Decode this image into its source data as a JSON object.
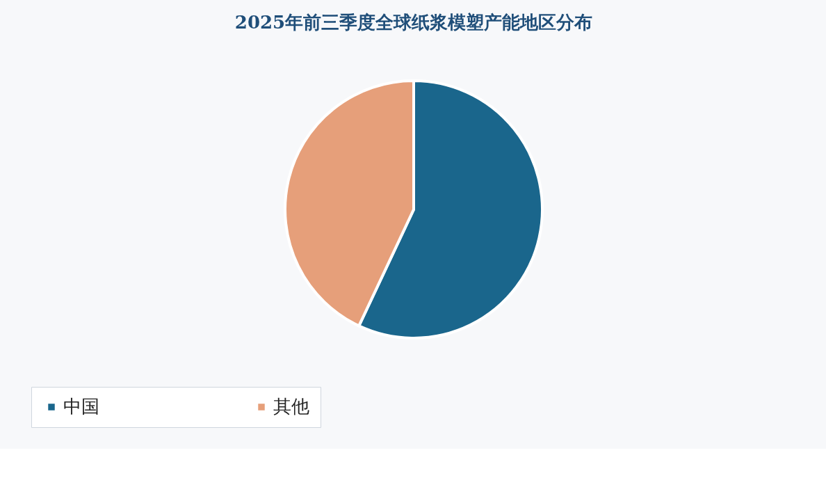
{
  "chart_data": {
    "type": "pie",
    "title": "2025年前三季度全球纸浆模塑产能地区分布",
    "categories": [
      "中国",
      "其他"
    ],
    "values": [
      57,
      43
    ],
    "colors": [
      "#1a668c",
      "#e69f7a"
    ],
    "legend": "bottom"
  }
}
